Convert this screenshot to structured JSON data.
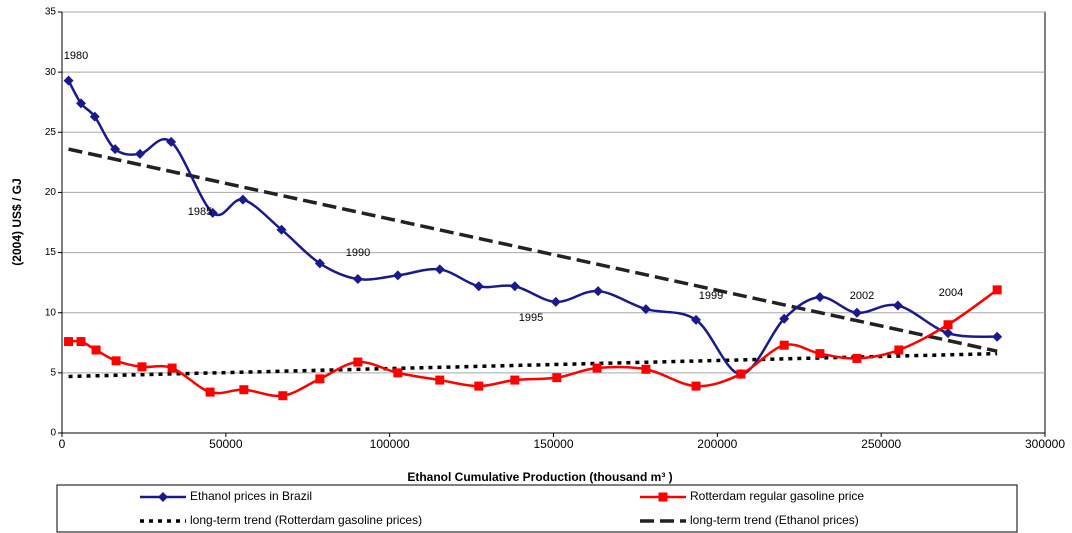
{
  "chart_data": {
    "type": "line",
    "xlabel": "Ethanol Cumulative Production (thousand m³ )",
    "ylabel": "(2004) US$ / GJ",
    "xlim": [
      0,
      300000
    ],
    "xticks": [
      0,
      50000,
      100000,
      150000,
      200000,
      250000,
      300000
    ],
    "ylim": [
      0,
      35
    ],
    "yticks": [
      0,
      5,
      10,
      15,
      20,
      25,
      30,
      35
    ],
    "grid": true,
    "series": [
      {
        "name": "Ethanol prices in Brazil",
        "color": "#1a1a8c",
        "marker": "diamond",
        "style": "solid",
        "x": [
          2000,
          5800,
          10000,
          16200,
          23800,
          33300,
          46000,
          55200,
          67000,
          78700,
          90300,
          102500,
          115300,
          127200,
          138200,
          150700,
          163600,
          178200,
          193500,
          207200,
          220400,
          231300,
          242600,
          255100,
          270400,
          285400
        ],
        "values": [
          29.3,
          27.4,
          26.3,
          23.6,
          23.2,
          24.2,
          18.3,
          19.4,
          16.9,
          14.1,
          12.8,
          13.1,
          13.6,
          12.2,
          12.2,
          10.9,
          11.8,
          10.3,
          9.4,
          4.9,
          9.5,
          11.3,
          10.0,
          10.6,
          8.3,
          8.0
        ]
      },
      {
        "name": "Rotterdam regular gasoline price",
        "color": "#ff0000",
        "marker": "square",
        "style": "solid",
        "x": [
          2000,
          5800,
          10400,
          16500,
          24400,
          33600,
          45200,
          55500,
          67400,
          78700,
          90300,
          102500,
          115300,
          127200,
          138200,
          151000,
          163300,
          178200,
          193500,
          207200,
          220400,
          231300,
          242600,
          255400,
          270400,
          285400
        ],
        "values": [
          7.6,
          7.6,
          6.9,
          6.0,
          5.5,
          5.4,
          3.4,
          3.6,
          3.1,
          4.5,
          5.9,
          5.0,
          4.4,
          3.9,
          4.4,
          4.6,
          5.4,
          5.3,
          3.9,
          4.9,
          7.3,
          6.6,
          6.2,
          6.9,
          9.0,
          11.9
        ]
      },
      {
        "name": "long-term trend (Rotterdam gasoline prices)",
        "color": "#000000",
        "marker": "none",
        "style": "dotted",
        "x": [
          2000,
          285400
        ],
        "values": [
          4.7,
          6.6
        ]
      },
      {
        "name": "long-term trend (Ethanol prices)",
        "color": "#222222",
        "marker": "none",
        "style": "dashed",
        "x": [
          2000,
          285400
        ],
        "values": [
          23.6,
          6.8
        ]
      }
    ],
    "annotations": [
      "1980",
      "1985",
      "1990",
      "1995",
      "1999",
      "2002",
      "2004"
    ]
  }
}
